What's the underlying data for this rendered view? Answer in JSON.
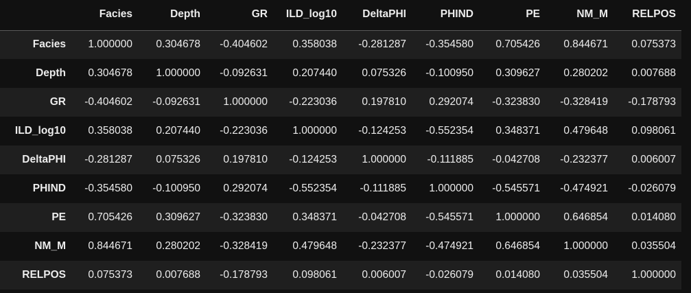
{
  "table": {
    "index_header": "",
    "columns": [
      "Facies",
      "Depth",
      "GR",
      "ILD_log10",
      "DeltaPHI",
      "PHIND",
      "PE",
      "NM_M",
      "RELPOS"
    ],
    "rows": [
      {
        "label": "Facies",
        "values": [
          "1.000000",
          "0.304678",
          "-0.404602",
          "0.358038",
          "-0.281287",
          "-0.354580",
          "0.705426",
          "0.844671",
          "0.075373"
        ]
      },
      {
        "label": "Depth",
        "values": [
          "0.304678",
          "1.000000",
          "-0.092631",
          "0.207440",
          "0.075326",
          "-0.100950",
          "0.309627",
          "0.280202",
          "0.007688"
        ]
      },
      {
        "label": "GR",
        "values": [
          "-0.404602",
          "-0.092631",
          "1.000000",
          "-0.223036",
          "0.197810",
          "0.292074",
          "-0.323830",
          "-0.328419",
          "-0.178793"
        ]
      },
      {
        "label": "ILD_log10",
        "values": [
          "0.358038",
          "0.207440",
          "-0.223036",
          "1.000000",
          "-0.124253",
          "-0.552354",
          "0.348371",
          "0.479648",
          "0.098061"
        ]
      },
      {
        "label": "DeltaPHI",
        "values": [
          "-0.281287",
          "0.075326",
          "0.197810",
          "-0.124253",
          "1.000000",
          "-0.111885",
          "-0.042708",
          "-0.232377",
          "0.006007"
        ]
      },
      {
        "label": "PHIND",
        "values": [
          "-0.354580",
          "-0.100950",
          "0.292074",
          "-0.552354",
          "-0.111885",
          "1.000000",
          "-0.545571",
          "-0.474921",
          "-0.026079"
        ]
      },
      {
        "label": "PE",
        "values": [
          "0.705426",
          "0.309627",
          "-0.323830",
          "0.348371",
          "-0.042708",
          "-0.545571",
          "1.000000",
          "0.646854",
          "0.014080"
        ]
      },
      {
        "label": "NM_M",
        "values": [
          "0.844671",
          "0.280202",
          "-0.328419",
          "0.479648",
          "-0.232377",
          "-0.474921",
          "0.646854",
          "1.000000",
          "0.035504"
        ]
      },
      {
        "label": "RELPOS",
        "values": [
          "0.075373",
          "0.007688",
          "-0.178793",
          "0.098061",
          "0.006007",
          "-0.026079",
          "0.014080",
          "0.035504",
          "1.000000"
        ]
      }
    ]
  }
}
